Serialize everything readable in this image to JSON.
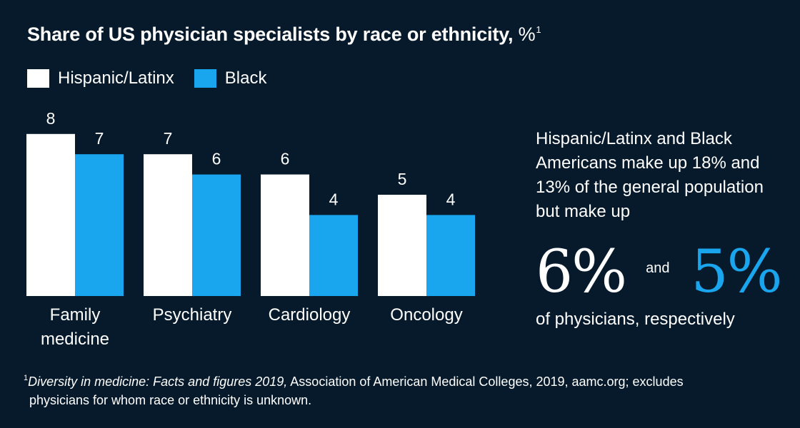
{
  "title": {
    "text": "Share of US physician specialists by race or ethnicity,",
    "unit": "%",
    "footnote_marker": "1"
  },
  "colors": {
    "background": "#061a2c",
    "hispanic": "#ffffff",
    "black": "#1aa6ee"
  },
  "chart_data": {
    "type": "bar",
    "title": "Share of US physician specialists by race or ethnicity, %",
    "categories": [
      [
        "Family",
        "medicine"
      ],
      [
        "Psychiatry"
      ],
      [
        "Cardiology"
      ],
      [
        "Oncology"
      ]
    ],
    "series": [
      {
        "name": "Hispanic/Latinx",
        "values": [
          8,
          7,
          6,
          5
        ],
        "color": "#ffffff"
      },
      {
        "name": "Black",
        "values": [
          7,
          6,
          4,
          4
        ],
        "color": "#1aa6ee"
      }
    ],
    "ylim": [
      0,
      8
    ],
    "legend": "top-left",
    "grid": false
  },
  "callout": {
    "text": "Hispanic/Latinx and Black Americans make up 18% and 13% of the general population but make up",
    "value_a": "6%",
    "connector": "and",
    "value_b": "5%",
    "text_after": "of physicians, respectively"
  },
  "footnote": {
    "marker": "1",
    "source_title": "Diversity in medicine: Facts and figures 2019,",
    "line1_rest": " Association of American Medical Colleges, 2019, aamc.org; excludes",
    "line2": "physicians for whom race or ethnicity is unknown."
  }
}
